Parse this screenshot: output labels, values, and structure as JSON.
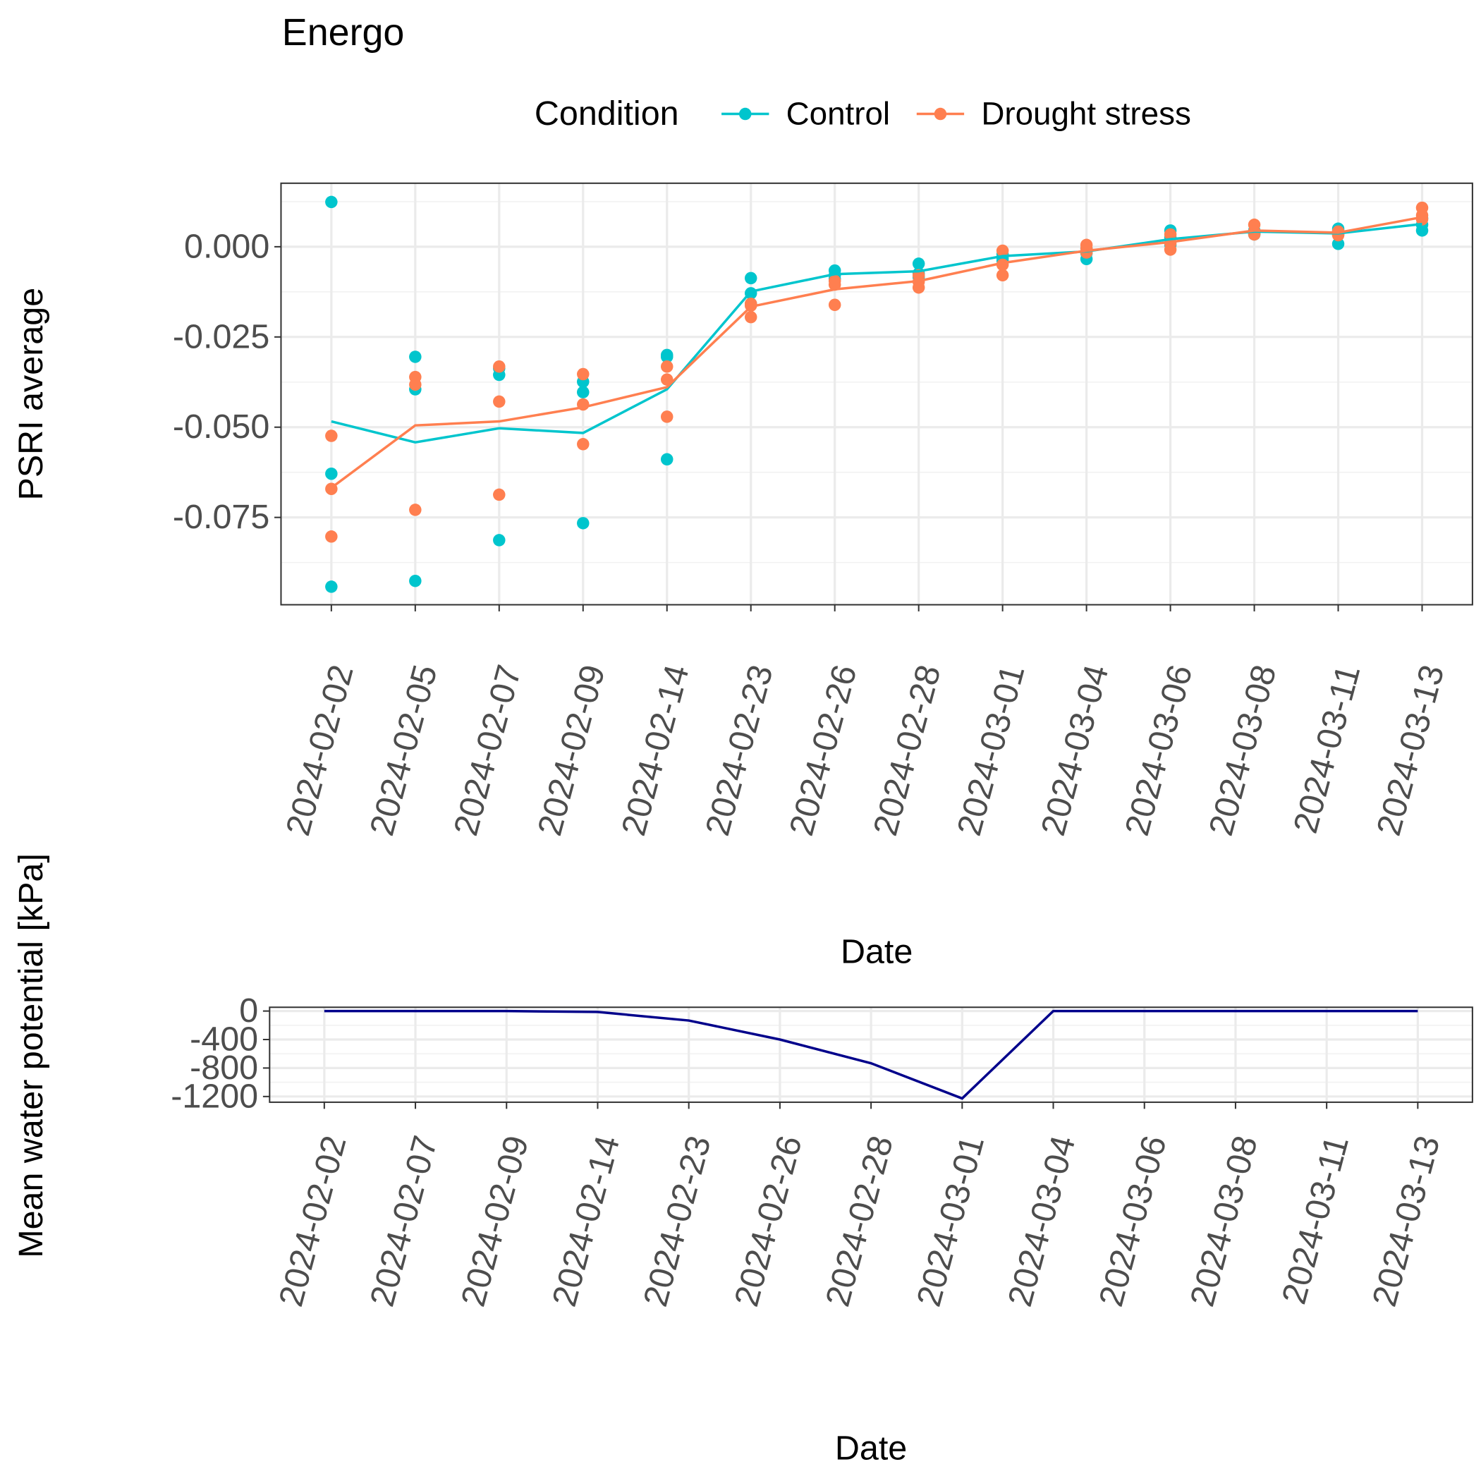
{
  "chart_data": [
    {
      "type": "line",
      "title": "Energo",
      "ylabel": "PSRI average",
      "xlabel": "Date",
      "legend_title": "Condition",
      "legend": "top",
      "grid": true,
      "categories": [
        "2024-02-02",
        "2024-02-05",
        "2024-02-07",
        "2024-02-09",
        "2024-02-14",
        "2024-02-23",
        "2024-02-26",
        "2024-02-28",
        "2024-03-01",
        "2024-03-04",
        "2024-03-06",
        "2024-03-08",
        "2024-03-11",
        "2024-03-13"
      ],
      "ylim": [
        -0.0992,
        0.0176
      ],
      "yticks": [
        {
          "value": -0.075,
          "label": "-0.075"
        },
        {
          "value": -0.05,
          "label": "-0.050"
        },
        {
          "value": -0.025,
          "label": "-0.025"
        },
        {
          "value": 0,
          "label": "0.000"
        }
      ],
      "series": [
        {
          "name": "Control",
          "color": "#00c5cd",
          "values": [
            -0.0484,
            -0.0542,
            -0.0503,
            -0.0516,
            -0.0395,
            -0.0124,
            -0.0076,
            -0.0068,
            -0.0026,
            -0.0013,
            0.0021,
            0.0042,
            0.0037,
            0.0063
          ],
          "points": [
            [
              0.0124,
              -0.0629,
              -0.0942
            ],
            [
              -0.0305,
              -0.0395,
              -0.0926
            ],
            [
              -0.0337,
              -0.0355,
              -0.0813
            ],
            [
              -0.0374,
              -0.0403,
              -0.0766
            ],
            [
              -0.03,
              -0.0305,
              -0.0589
            ],
            [
              -0.0087,
              -0.0129,
              -0.0158
            ],
            [
              -0.0066,
              -0.0079,
              -0.0089
            ],
            [
              -0.0047,
              -0.0074,
              -0.0084
            ],
            [
              -0.0021,
              -0.0032,
              -0.0039
            ],
            [
              -0.0005,
              -0.0018,
              -0.0034
            ],
            [
              0.0045,
              0.0026,
              0.0005
            ],
            [
              0.0045,
              0.0037,
              0.0034
            ],
            [
              0.005,
              0.0008,
              0.0045
            ],
            [
              0.0079,
              0.0061,
              0.0045
            ]
          ]
        },
        {
          "name": "Drought stress",
          "color": "#ff7f50",
          "values": [
            -0.0668,
            -0.0495,
            -0.0484,
            -0.0445,
            -0.0389,
            -0.0166,
            -0.0118,
            -0.0095,
            -0.0045,
            -0.0011,
            0.0013,
            0.0045,
            0.0039,
            0.0082
          ],
          "points": [
            [
              -0.0524,
              -0.0671,
              -0.0803
            ],
            [
              -0.0361,
              -0.0382,
              -0.0729
            ],
            [
              -0.0332,
              -0.0429,
              -0.0687
            ],
            [
              -0.0353,
              -0.0437,
              -0.0547
            ],
            [
              -0.0332,
              -0.0368,
              -0.0471
            ],
            [
              -0.0158,
              -0.0195,
              -0.0163
            ],
            [
              -0.0095,
              -0.0105,
              -0.0161
            ],
            [
              -0.0079,
              -0.0097,
              -0.0113
            ],
            [
              -0.0011,
              -0.005,
              -0.0079
            ],
            [
              0.0005,
              -0.0005,
              -0.0016
            ],
            [
              0.0034,
              0.001,
              -0.0008
            ],
            [
              0.0061,
              0.0042,
              0.0034
            ],
            [
              0.0042,
              0.0032,
              0.0034
            ],
            [
              0.0108,
              0.0087,
              0.0076
            ]
          ]
        }
      ]
    },
    {
      "type": "line",
      "ylabel": "Mean water potential [kPa]",
      "xlabel": "Date",
      "grid": true,
      "color": "#00008b",
      "categories": [
        "2024-02-02",
        "2024-02-07",
        "2024-02-09",
        "2024-02-14",
        "2024-02-23",
        "2024-02-26",
        "2024-02-28",
        "2024-03-01",
        "2024-03-04",
        "2024-03-06",
        "2024-03-08",
        "2024-03-11",
        "2024-03-13"
      ],
      "values": [
        0,
        0,
        0,
        -13,
        -133,
        -400,
        -733,
        -1227,
        0,
        0,
        0,
        0,
        0
      ],
      "ylim": [
        -1280,
        53
      ],
      "yticks": [
        -1200,
        -800,
        -400,
        0
      ]
    }
  ]
}
